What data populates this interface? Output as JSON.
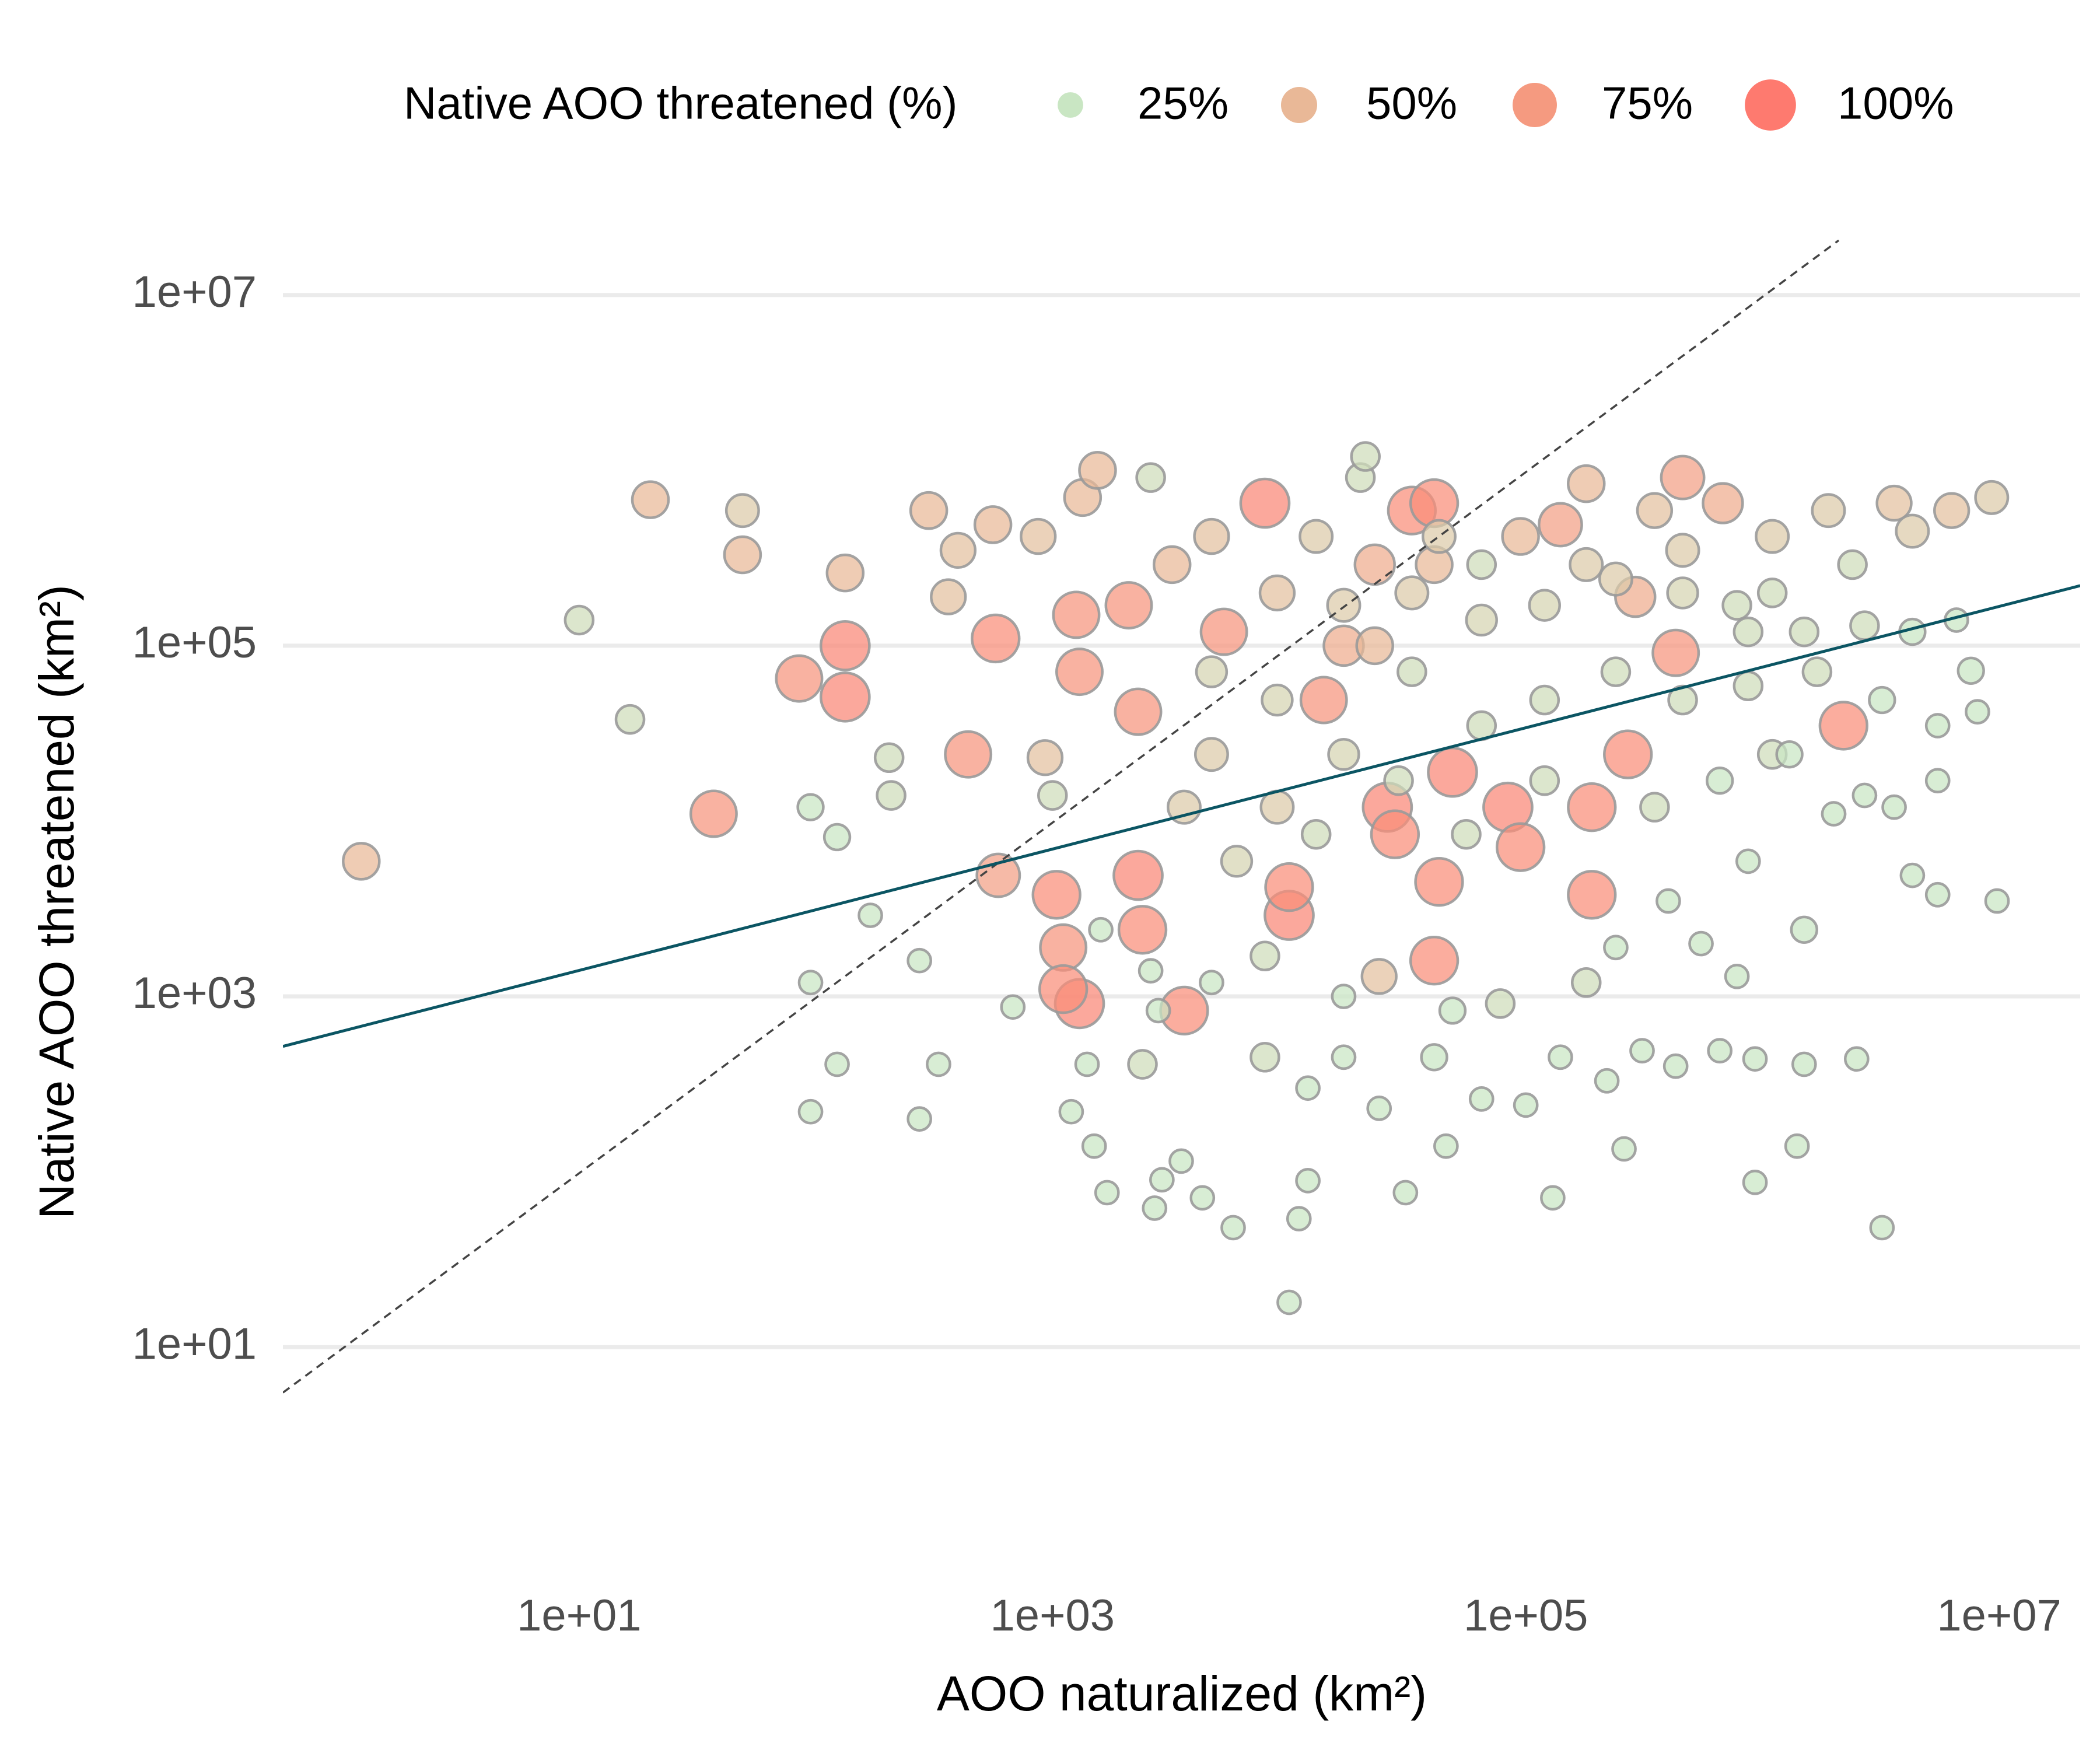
{
  "chart_data": {
    "type": "scatter",
    "x_label": "AOO naturalized (km²)",
    "y_label": "Native AOO threatened (km²)",
    "log_x": true,
    "log_y": true,
    "grid": true,
    "xlim": [
      0.56,
      22000000
    ],
    "ylim": [
      0.85,
      26000000
    ],
    "xticks": [
      {
        "value": 10,
        "label": "1e+01"
      },
      {
        "value": 1000,
        "label": "1e+03"
      },
      {
        "value": 100000,
        "label": "1e+05"
      },
      {
        "value": 10000000,
        "label": "1e+07"
      }
    ],
    "yticks": [
      {
        "value": 10,
        "label": "1e+01"
      },
      {
        "value": 1000,
        "label": "1e+03"
      },
      {
        "value": 100000,
        "label": "1e+05"
      },
      {
        "value": 10000000,
        "label": "1e+07"
      }
    ],
    "legend": {
      "title": "Native AOO threatened (%)",
      "position": "top",
      "items": [
        {
          "value": 25,
          "label": "25%",
          "color": "#c9e6c3"
        },
        {
          "value": 50,
          "label": "50%",
          "color": "#e9b897"
        },
        {
          "value": 75,
          "label": "75%",
          "color": "#f59a80"
        },
        {
          "value": 100,
          "label": "100%",
          "color": "#fe7a6f"
        }
      ]
    },
    "reference_lines": [
      {
        "style": "dashed",
        "color": "#444444",
        "x": [
          0.56,
          2100000
        ],
        "y": [
          5.5,
          20500000
        ]
      },
      {
        "style": "solid",
        "color": "#0b5563",
        "x": [
          0.56,
          22000000
        ],
        "y": [
          519,
          220000
        ]
      }
    ],
    "series": [
      {
        "x": [
          1.2,
          10,
          16.4,
          20,
          37,
          49,
          49,
          85,
          133,
          133,
          133,
          95,
          123,
          204,
          208,
          300,
          363,
          399,
          560,
          440,
          575,
          590,
          95,
          123,
          95,
          274,
          330,
          274,
          170,
          680,
          1000,
          930,
          870,
          1300,
          1110,
          1300,
          1110,
          1040,
          1260,
          1340,
          1550,
          2600,
          2100,
          2300,
          2300,
          2400,
          3600,
          3200,
          4700,
          5300,
          7900,
          10000,
          10000,
          8900,
          14000,
          17000,
          20000,
          21000,
          23000,
          26000,
          28000,
          33000,
          41000,
          41000,
          43000,
          41000,
          24000,
          49000,
          65000,
          84000,
          95000,
          140000,
          180000,
          190000,
          190000,
          270000,
          290000,
          460000,
          430000,
          460000,
          680000,
          780000,
          1100000,
          1100000,
          1900000,
          2200000,
          2700000,
          3600000,
          4300000,
          6300000,
          9300000,
          6600000,
          8100000,
          9800000,
          5500000,
          4300000,
          3200000,
          930000,
          1400000,
          2500000,
          1500000,
          930000,
          660000,
          430000,
          310000,
          220000,
          260000,
          130000,
          100000,
          65000,
          46000,
          31000,
          24000,
          17000,
          12000,
          12000,
          11000,
          10000,
          7900,
          5800,
          4300,
          3500,
          2900,
          2700,
          2400,
          1700,
          1500,
          1200,
          1400,
          140000,
          41000,
          240000,
          550000,
          870000,
          2000000,
          1500000,
          780000,
          400000,
          180000,
          78000,
          49000,
          17000,
          7900,
          4700,
          2800,
          2600,
          1600,
          2700000,
          3600000,
          5500000,
          7600000,
          4700,
          8900,
          17000,
          33000,
          65000,
          120000,
          240000,
          460000,
          870000,
          1700000,
          17000,
          33000,
          65000,
          120000,
          240000,
          460000,
          870000,
          8900,
          4700,
          3600,
          6000,
          13000,
          29000,
          56000,
          120000,
          350000,
          660000,
          1300000,
          23000,
          95000,
          43000,
          13000,
          350000,
          180000,
          1100000,
          2400000,
          1500000,
          4300000,
          3200000,
          5500000
        ],
        "values": [
          5900,
          140000,
          38000,
          680000,
          11000,
          330000,
          590000,
          65000,
          100000,
          51000,
          260000,
          12000,
          8100,
          23000,
          14000,
          590000,
          190000,
          350000,
          490000,
          24000,
          110000,
          4900,
          1200,
          410,
          220,
          200,
          410,
          1600,
          2900,
          870,
          14000,
          23000,
          420000,
          71000,
          1900,
          910,
          1100,
          3800,
          150000,
          700000,
          1000000,
          910000,
          170000,
          42000,
          4900,
          2400,
          830,
          290000,
          420000,
          120000,
          650000,
          2900,
          4200,
          12000,
          49000,
          100000,
          910000,
          1200000,
          290000,
          12000,
          8400,
          590000,
          650000,
          290000,
          4500,
          1600,
          1300,
          19000,
          290000,
          12000,
          7100,
          490000,
          840000,
          12000,
          3800,
          24000,
          190000,
          910000,
          91000,
          350000,
          650000,
          170000,
          24000,
          420000,
          590000,
          35000,
          130000,
          650000,
          450000,
          590000,
          700000,
          140000,
          42000,
          3500,
          3800,
          4900,
          48,
          87,
          140,
          440,
          410,
          440,
          490,
          400,
          490,
          330,
          135,
          71,
          240,
          260,
          140,
          76,
          230,
          450,
          300,
          89,
          54,
          18,
          450,
          48,
          71,
          115,
          90,
          62,
          410,
          76,
          140,
          220,
          410,
          450,
          450,
          1900,
          2000,
          5900,
          11000,
          2400,
          1300,
          3500,
          1200,
          910,
          830,
          1000,
          1700,
          1200,
          830,
          1400,
          2400,
          14000,
          12000,
          17000,
          72000,
          24000,
          49000,
          24000,
          71000,
          35000,
          49000,
          71000,
          49000,
          59000,
          71000,
          170000,
          200000,
          140000,
          170000,
          240000,
          200000,
          120000,
          200000,
          71000,
          12000,
          5900,
          8400,
          17000,
          8400,
          17000,
          12000,
          17000,
          24000,
          100000,
          420000,
          420000,
          420000,
          590000,
          290000,
          200000,
          290000,
          120000,
          120000,
          49000,
          35000
        ],
        "sizes": [
          50,
          30,
          30,
          50,
          80,
          50,
          40,
          80,
          90,
          90,
          50,
          25,
          25,
          30,
          30,
          50,
          45,
          45,
          50,
          80,
          85,
          70,
          20,
          20,
          20,
          20,
          20,
          20,
          20,
          20,
          30,
          45,
          45,
          80,
          80,
          90,
          85,
          85,
          80,
          50,
          50,
          30,
          80,
          80,
          90,
          85,
          85,
          50,
          45,
          80,
          90,
          90,
          85,
          40,
          80,
          60,
          30,
          30,
          60,
          90,
          85,
          85,
          85,
          50,
          85,
          85,
          45,
          90,
          30,
          90,
          85,
          70,
          50,
          85,
          85,
          85,
          60,
          70,
          80,
          40,
          60,
          30,
          30,
          40,
          40,
          85,
          30,
          45,
          40,
          45,
          40,
          20,
          20,
          20,
          20,
          20,
          20,
          20,
          20,
          20,
          20,
          20,
          20,
          20,
          20,
          20,
          20,
          20,
          20,
          20,
          20,
          20,
          20,
          20,
          20,
          20,
          20,
          20,
          30,
          20,
          20,
          20,
          20,
          20,
          30,
          20,
          20,
          20,
          20,
          20,
          25,
          20,
          20,
          20,
          20,
          25,
          20,
          20,
          30,
          30,
          25,
          20,
          30,
          20,
          20,
          20,
          20,
          20,
          20,
          20,
          25,
          40,
          35,
          35,
          30,
          30,
          30,
          30,
          30,
          30,
          30,
          40,
          40,
          35,
          35,
          40,
          35,
          30,
          45,
          35,
          40,
          35,
          30,
          30,
          30,
          30,
          30,
          25,
          25,
          50,
          50,
          40,
          40,
          45,
          40,
          30,
          30,
          30,
          25,
          25,
          20
        ]
      }
    ]
  }
}
